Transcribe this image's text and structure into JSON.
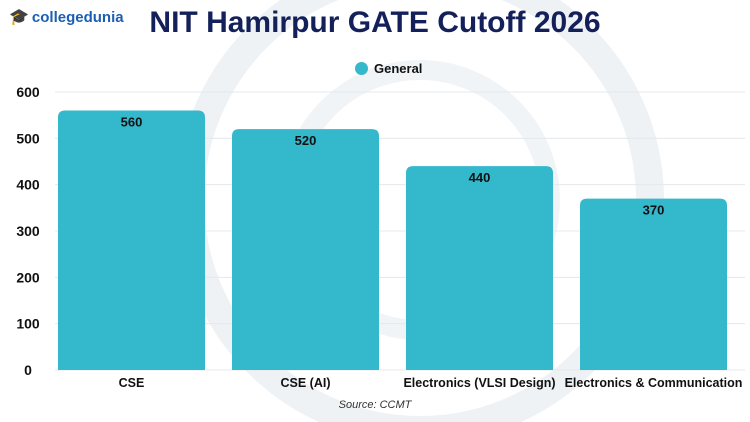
{
  "logo": {
    "text": "collegedunia"
  },
  "chart_data": {
    "type": "bar",
    "title": "NIT Hamirpur GATE Cutoff 2026",
    "categories": [
      "CSE",
      "CSE (AI)",
      "Electronics (VLSI Design)",
      "Electronics & Communication"
    ],
    "series": [
      {
        "name": "General",
        "values": [
          560,
          520,
          440,
          370
        ]
      }
    ],
    "ylim": [
      0,
      600
    ],
    "yticks": [
      0,
      100,
      200,
      300,
      400,
      500,
      600
    ],
    "grid": true,
    "legend": "top-center",
    "color": "#33b8cc",
    "source": "Source: CCMT"
  }
}
